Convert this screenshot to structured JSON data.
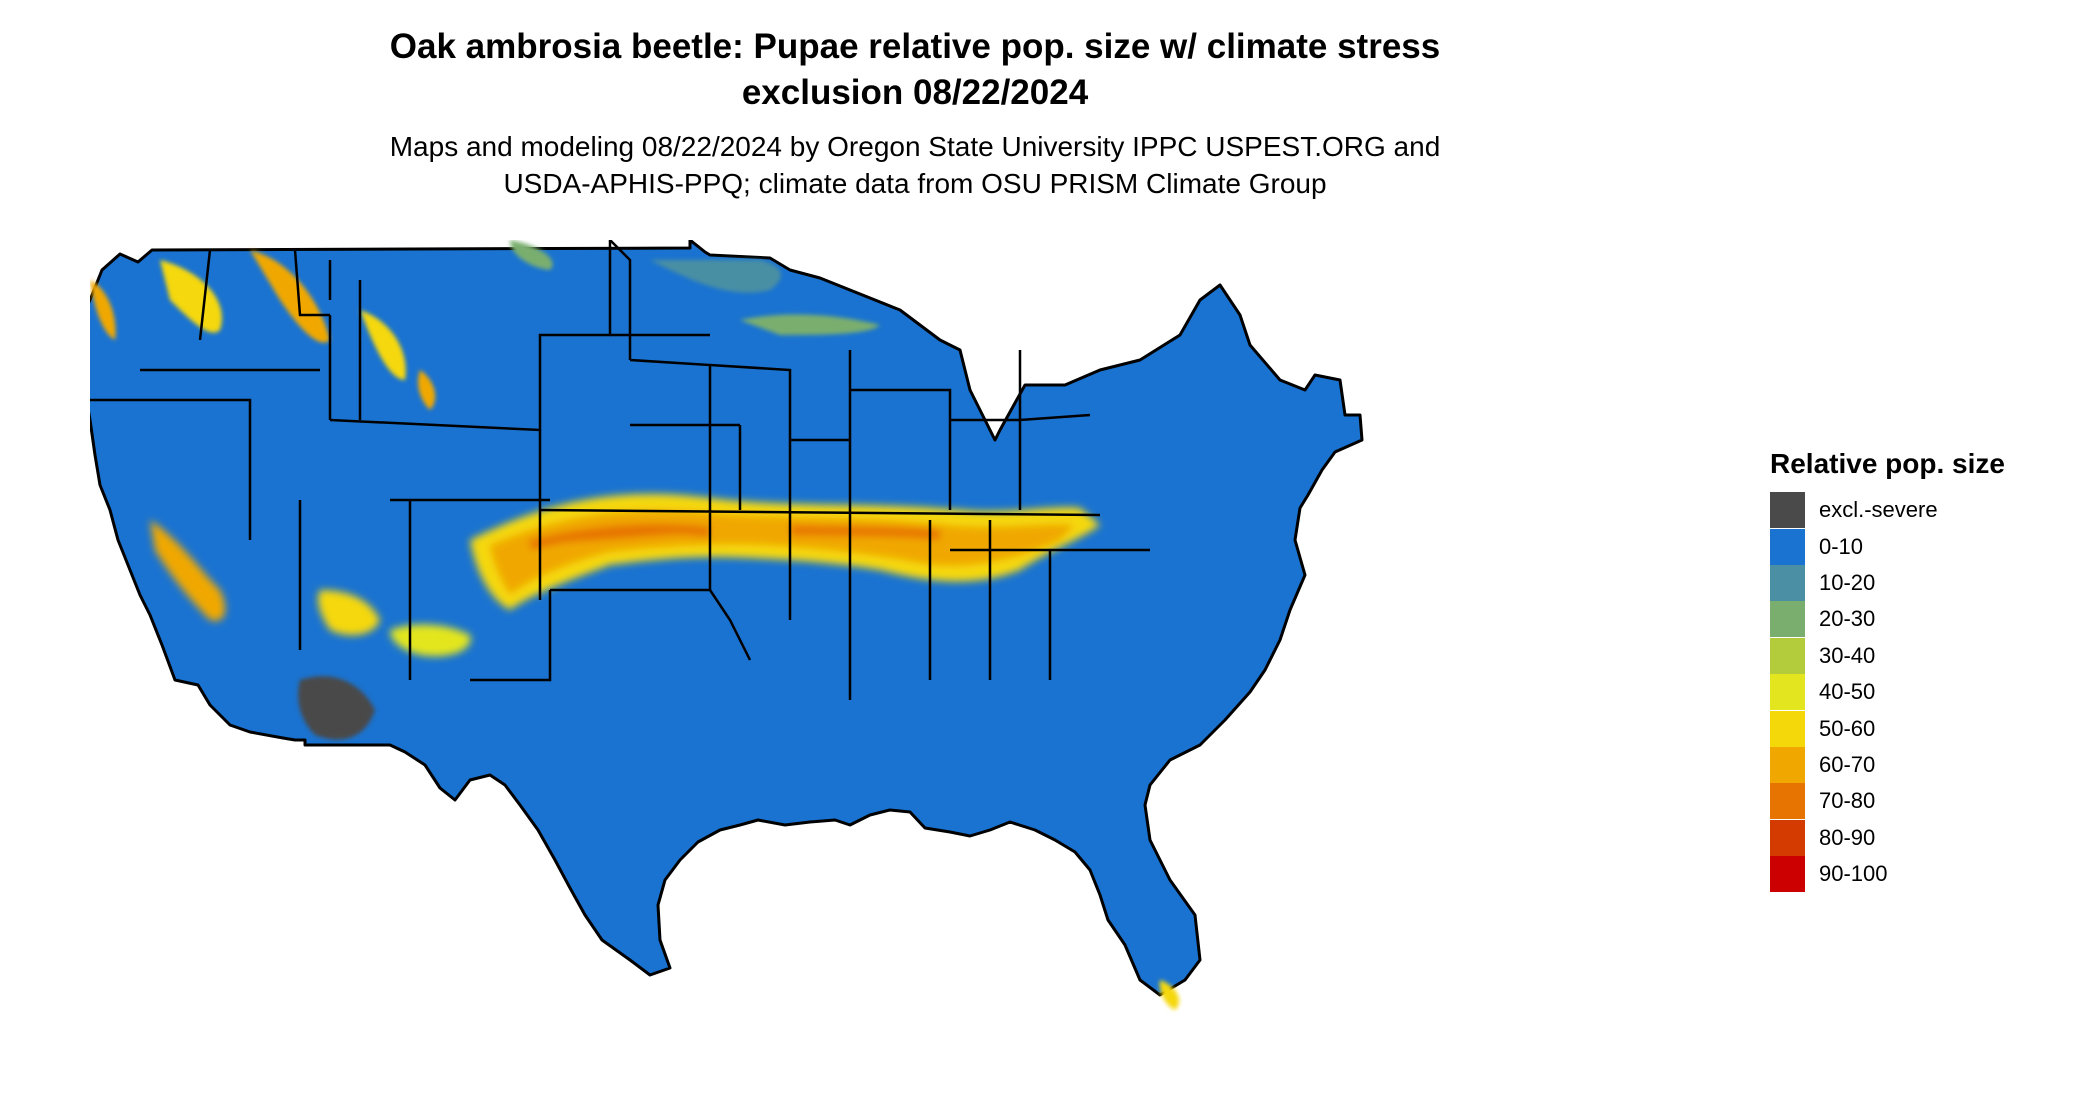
{
  "header": {
    "title_line1": "Oak ambrosia beetle: Pupae relative pop. size w/ climate stress",
    "title_line2": "exclusion 08/22/2024",
    "subtitle_line1": "Maps and modeling 08/22/2024 by Oregon State University IPPC USPEST.ORG and",
    "subtitle_line2": "USDA-APHIS-PPQ; climate data from OSU PRISM Climate Group"
  },
  "legend": {
    "title": "Relative pop. size",
    "items": [
      {
        "label": "excl.-severe",
        "color": "#4a4a4a"
      },
      {
        "label": "0-10",
        "color": "#1a73d0"
      },
      {
        "label": "10-20",
        "color": "#4a8fa3"
      },
      {
        "label": "20-30",
        "color": "#7aae6e"
      },
      {
        "label": "30-40",
        "color": "#b3cc3c"
      },
      {
        "label": "40-50",
        "color": "#e3e61e"
      },
      {
        "label": "50-60",
        "color": "#f5d80a"
      },
      {
        "label": "60-70",
        "color": "#f0a800"
      },
      {
        "label": "70-80",
        "color": "#e77300"
      },
      {
        "label": "80-90",
        "color": "#d43b00"
      },
      {
        "label": "90-100",
        "color": "#cc0000"
      }
    ]
  },
  "map": {
    "base_color": "#1a73d0",
    "border_color": "#000000"
  }
}
